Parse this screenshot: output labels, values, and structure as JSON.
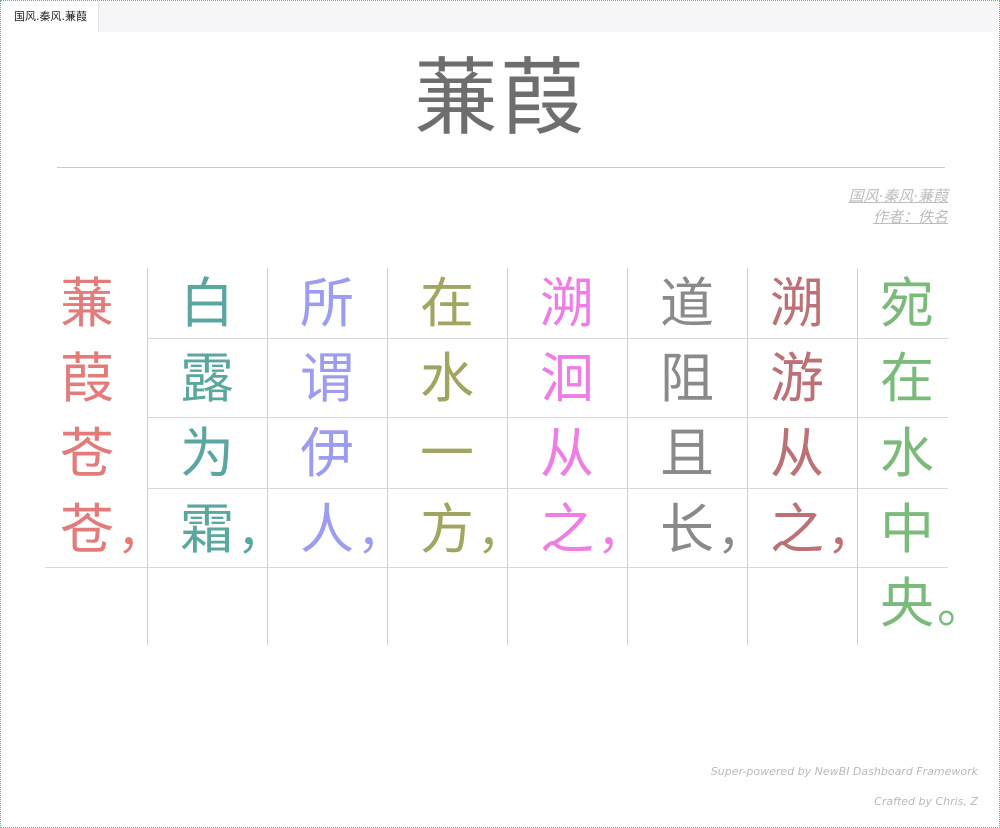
{
  "tab": {
    "label": "国风.秦风.蒹葭"
  },
  "poem": {
    "title": "蒹葭",
    "source": "国风·秦风·蒹葭",
    "author": "作者：佚名"
  },
  "columns": [
    {
      "chars": [
        "蒹",
        "葭",
        "苍",
        "苍"
      ],
      "punct": "，",
      "color": "#e37b7b"
    },
    {
      "chars": [
        "白",
        "露",
        "为",
        "霜"
      ],
      "punct": "，",
      "color": "#5aa7a0"
    },
    {
      "chars": [
        "所",
        "谓",
        "伊",
        "人"
      ],
      "punct": "，",
      "color": "#9c9cf0"
    },
    {
      "chars": [
        "在",
        "水",
        "一",
        "方"
      ],
      "punct": "，",
      "color": "#a2a55f"
    },
    {
      "chars": [
        "溯",
        "洄",
        "从",
        "之"
      ],
      "punct": "，",
      "color": "#ee7de6"
    },
    {
      "chars": [
        "道",
        "阻",
        "且",
        "长"
      ],
      "punct": "，",
      "color": "#8a8a8a"
    },
    {
      "chars": [
        "溯",
        "游",
        "从",
        "之"
      ],
      "punct": "，",
      "color": "#bb7175"
    },
    {
      "chars": [
        "宛",
        "在",
        "水",
        "中",
        "央"
      ],
      "punct": "。",
      "color": "#7aba7a"
    }
  ],
  "footer": {
    "powered": "Super-powered by NewBI Dashboard Framework",
    "credit": "Crafted by Chris, Z"
  }
}
